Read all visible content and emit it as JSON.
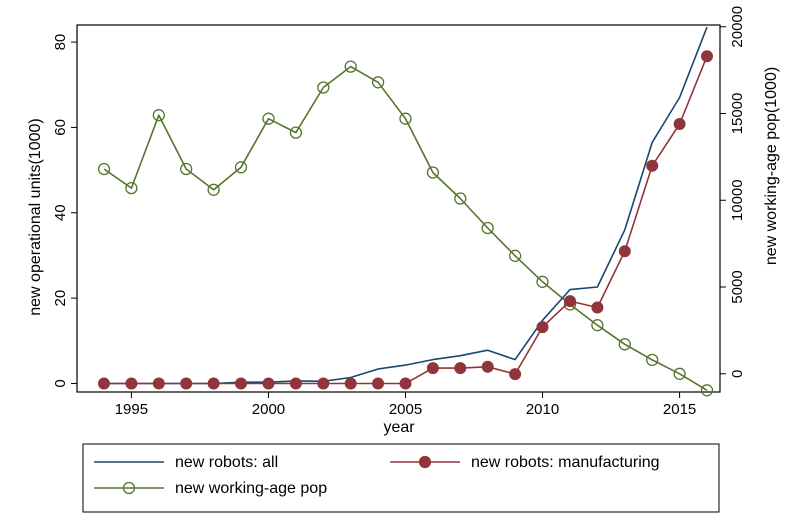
{
  "chart_data": {
    "type": "line",
    "title": "",
    "xlabel": "year",
    "ylabel": "new operational units(1000)",
    "y2label": "new working-age pop(1000)",
    "x": [
      1994,
      1995,
      1996,
      1997,
      1998,
      1999,
      2000,
      2001,
      2002,
      2003,
      2004,
      2005,
      2006,
      2007,
      2008,
      2009,
      2010,
      2011,
      2012,
      2013,
      2014,
      2015,
      2016
    ],
    "xlim": [
      1993,
      2017
    ],
    "xticks": [
      1995,
      2000,
      2005,
      2010,
      2015
    ],
    "ylim": [
      -2,
      84
    ],
    "yticks": [
      0,
      20,
      40,
      60,
      80
    ],
    "y2lim": [
      -1050,
      20100
    ],
    "y2ticks": [
      0,
      5000,
      10000,
      15000,
      20000
    ],
    "grid": false,
    "legend_position": "bottom",
    "series": [
      {
        "name": "new robots: all",
        "axis": "left",
        "color": "#1a476f",
        "marker": "none",
        "values": [
          0.0,
          0.0,
          0.0,
          0.0,
          0.0,
          0.3,
          0.3,
          0.6,
          0.5,
          1.4,
          3.4,
          4.3,
          5.6,
          6.5,
          7.8,
          5.6,
          14.8,
          22.0,
          22.6,
          36.0,
          56.5,
          67.0,
          83.5
        ]
      },
      {
        "name": "new robots: manufacturing",
        "axis": "left",
        "color": "#90353b",
        "marker": "filled-circle",
        "values": [
          0.0,
          0.0,
          0.0,
          0.0,
          0.0,
          0.0,
          0.0,
          0.0,
          0.0,
          0.0,
          0.0,
          0.0,
          3.6,
          3.6,
          3.9,
          2.2,
          13.2,
          19.3,
          17.8,
          31.0,
          51.0,
          60.8,
          76.7
        ]
      },
      {
        "name": "new working-age pop",
        "axis": "right",
        "color": "#55752f",
        "marker": "hollow-circle",
        "values": [
          11800,
          10700,
          14900,
          11800,
          10600,
          11900,
          14700,
          13900,
          16500,
          17700,
          16800,
          14700,
          11600,
          10100,
          8400,
          6800,
          5300,
          4000,
          2800,
          1700,
          800,
          0,
          -950
        ]
      }
    ]
  }
}
